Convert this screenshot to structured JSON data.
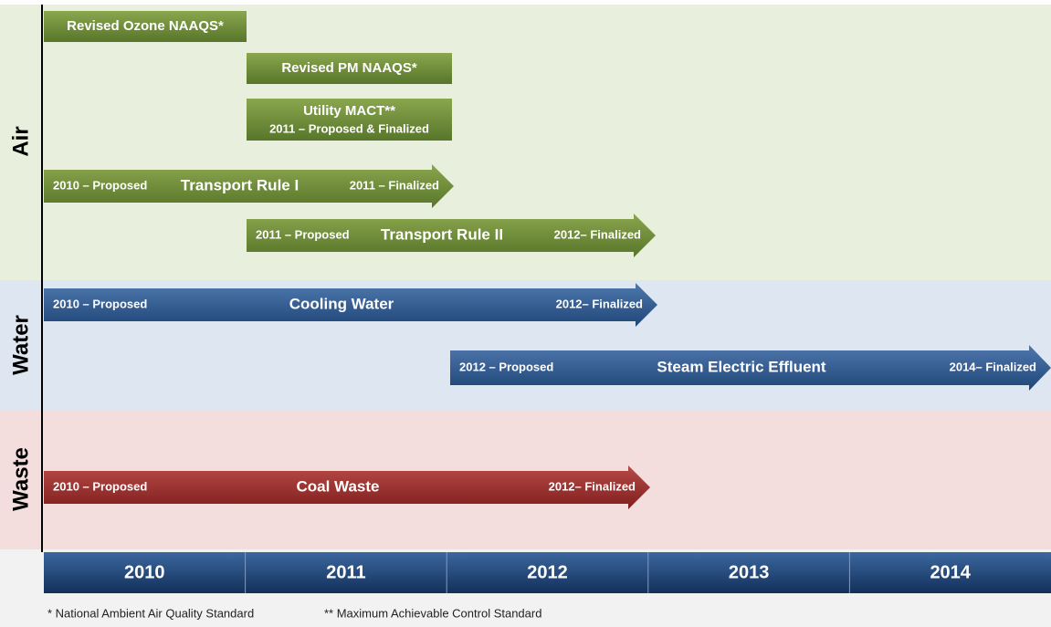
{
  "sections": [
    {
      "label": "Air"
    },
    {
      "label": "Water"
    },
    {
      "label": "Waste"
    }
  ],
  "bars": [
    {
      "title": "Revised Ozone NAAQS*"
    },
    {
      "title": "Revised PM NAAQS*"
    },
    {
      "title": "Utility MACT**",
      "subtitle": "2011 – Proposed & Finalized"
    },
    {
      "title": "Transport Rule I",
      "start": "2010 – Proposed",
      "end": "2011 – Finalized"
    },
    {
      "title": "Transport Rule II",
      "start": "2011 – Proposed",
      "end": "2012– Finalized"
    },
    {
      "title": "Cooling Water",
      "start": "2010 – Proposed",
      "end": "2012– Finalized"
    },
    {
      "title": "Steam Electric Effluent",
      "start": "2012 – Proposed",
      "end": "2014– Finalized"
    },
    {
      "title": "Coal Waste",
      "start": "2010 – Proposed",
      "end": "2012– Finalized"
    }
  ],
  "years": [
    "2010",
    "2011",
    "2012",
    "2013",
    "2014"
  ],
  "footnotes": [
    "* National Ambient Air Quality Standard",
    "** Maximum Achievable Control Standard"
  ]
}
